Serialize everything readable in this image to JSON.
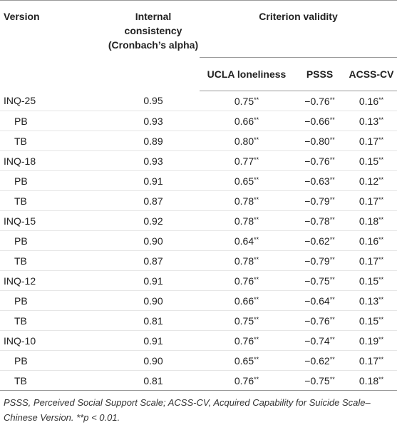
{
  "table": {
    "header": {
      "version": "Version",
      "alpha": "Internal consistency (Cronbach’s alpha)",
      "criterion": "Criterion validity",
      "ucla": "UCLA loneliness",
      "psss": "PSSS",
      "acss": "ACSS-CV"
    },
    "groups": [
      {
        "label": "INQ-25",
        "alpha": "0.95",
        "cells": [
          {
            "value": "0.75",
            "mark": "**"
          },
          {
            "value": "−0.76",
            "mark": "**"
          },
          {
            "value": "0.16",
            "mark": "**"
          }
        ],
        "subscales": [
          {
            "label": "PB",
            "alpha": "0.93",
            "cells": [
              {
                "value": "0.66",
                "mark": "**"
              },
              {
                "value": "−0.66",
                "mark": "**"
              },
              {
                "value": "0.13",
                "mark": "**"
              }
            ]
          },
          {
            "label": "TB",
            "alpha": "0.89",
            "cells": [
              {
                "value": "0.80",
                "mark": "**"
              },
              {
                "value": "−0.80",
                "mark": "**"
              },
              {
                "value": "0.17",
                "mark": "**"
              }
            ]
          }
        ]
      },
      {
        "label": "INQ-18",
        "alpha": "0.93",
        "cells": [
          {
            "value": "0.77",
            "mark": "**"
          },
          {
            "value": "−0.76",
            "mark": "**"
          },
          {
            "value": "0.15",
            "mark": "**"
          }
        ],
        "subscales": [
          {
            "label": "PB",
            "alpha": "0.91",
            "cells": [
              {
                "value": "0.65",
                "mark": "**"
              },
              {
                "value": "−0.63",
                "mark": "**"
              },
              {
                "value": "0.12",
                "mark": "**"
              }
            ]
          },
          {
            "label": "TB",
            "alpha": "0.87",
            "cells": [
              {
                "value": "0.78",
                "mark": "**"
              },
              {
                "value": "−0.79",
                "mark": "**"
              },
              {
                "value": "0.17",
                "mark": "**"
              }
            ]
          }
        ]
      },
      {
        "label": "INQ-15",
        "alpha": "0.92",
        "cells": [
          {
            "value": "0.78",
            "mark": "**"
          },
          {
            "value": "−0.78",
            "mark": "**"
          },
          {
            "value": "0.18",
            "mark": "**"
          }
        ],
        "subscales": [
          {
            "label": "PB",
            "alpha": "0.90",
            "cells": [
              {
                "value": "0.64",
                "mark": "**"
              },
              {
                "value": "−0.62",
                "mark": "**"
              },
              {
                "value": "0.16",
                "mark": "**"
              }
            ]
          },
          {
            "label": "TB",
            "alpha": "0.87",
            "cells": [
              {
                "value": "0.78",
                "mark": "**"
              },
              {
                "value": "−0.79",
                "mark": "**"
              },
              {
                "value": "0.17",
                "mark": "**"
              }
            ]
          }
        ]
      },
      {
        "label": "INQ-12",
        "alpha": "0.91",
        "cells": [
          {
            "value": "0.76",
            "mark": "**"
          },
          {
            "value": "−0.75",
            "mark": "**"
          },
          {
            "value": "0.15",
            "mark": "**"
          }
        ],
        "subscales": [
          {
            "label": "PB",
            "alpha": "0.90",
            "cells": [
              {
                "value": "0.66",
                "mark": "**"
              },
              {
                "value": "−0.64",
                "mark": "**"
              },
              {
                "value": "0.13",
                "mark": "**"
              }
            ]
          },
          {
            "label": "TB",
            "alpha": "0.81",
            "cells": [
              {
                "value": "0.75",
                "mark": "**"
              },
              {
                "value": "−0.76",
                "mark": "**"
              },
              {
                "value": "0.15",
                "mark": "**"
              }
            ]
          }
        ]
      },
      {
        "label": "INQ-10",
        "alpha": "0.91",
        "cells": [
          {
            "value": "0.76",
            "mark": "**"
          },
          {
            "value": "−0.74",
            "mark": "**"
          },
          {
            "value": "0.19",
            "mark": "**"
          }
        ],
        "subscales": [
          {
            "label": "PB",
            "alpha": "0.90",
            "cells": [
              {
                "value": "0.65",
                "mark": "**"
              },
              {
                "value": "−0.62",
                "mark": "**"
              },
              {
                "value": "0.17",
                "mark": "**"
              }
            ]
          },
          {
            "label": "TB",
            "alpha": "0.81",
            "cells": [
              {
                "value": "0.76",
                "mark": "**"
              },
              {
                "value": "−0.75",
                "mark": "**"
              },
              {
                "value": "0.18",
                "mark": "**"
              }
            ]
          }
        ]
      }
    ],
    "footnote": "PSSS, Perceived Social Support Scale; ACSS-CV, Acquired Capability for Suicide Scale–Chinese Version. **p < 0.01."
  }
}
